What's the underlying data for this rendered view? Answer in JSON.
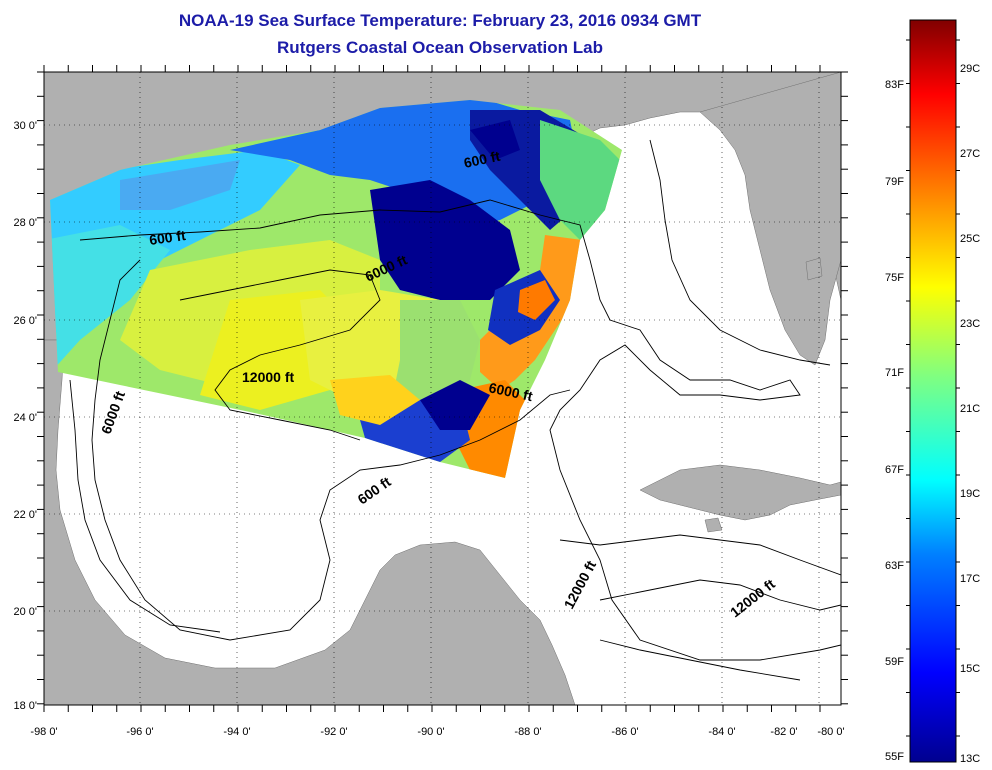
{
  "title": {
    "line1": "NOAA-19 Sea Surface Temperature:  February 23, 2016 0934 GMT",
    "line2": "Rutgers Coastal Ocean Observation Lab"
  },
  "axes": {
    "longitude_labels": [
      "-98 0'",
      "-96 0'",
      "-94 0'",
      "-92 0'",
      "-90 0'",
      "-88 0'",
      "-86 0'",
      "-84 0'",
      "-82 0'",
      "-80 0'"
    ],
    "latitude_labels": [
      "30 0'",
      "28 0'",
      "26 0'",
      "24 0'",
      "22 0'",
      "20 0'",
      "18 0'"
    ]
  },
  "contour_labels": [
    "600 ft",
    "600 ft",
    "6000 ft",
    "12000 ft",
    "6000 ft",
    "6000 ft",
    "600 ft",
    "12000 ft",
    "12000 ft"
  ],
  "colorbar": {
    "fahrenheit": [
      "83F",
      "79F",
      "75F",
      "71F",
      "67F",
      "63F",
      "59F",
      "55F"
    ],
    "celsius": [
      "29C",
      "27C",
      "25C",
      "23C",
      "21C",
      "19C",
      "17C",
      "15C",
      "13C"
    ],
    "min_c": 13,
    "max_c": 30,
    "colors": [
      "#00008f",
      "#0000ff",
      "#0080ff",
      "#00ffff",
      "#80ff80",
      "#ffff00",
      "#ff8000",
      "#ff0000",
      "#800000"
    ]
  },
  "colors": {
    "land": "#b0b0b0",
    "water": "#ffffff",
    "title": "#1c1ca8"
  }
}
